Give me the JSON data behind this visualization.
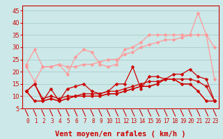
{
  "xlabel": "Vent moyen/en rafales ( km/h )",
  "background_color": "#cce8e8",
  "grid_color": "#aacccc",
  "x": [
    0,
    1,
    2,
    3,
    4,
    5,
    6,
    7,
    8,
    9,
    10,
    11,
    12,
    13,
    14,
    15,
    16,
    17,
    18,
    19,
    20,
    21,
    22,
    23
  ],
  "series": [
    {
      "y": [
        22,
        16,
        22,
        22,
        23,
        19,
        26,
        29,
        28,
        23,
        22,
        23,
        29,
        30,
        32,
        35,
        35,
        35,
        35,
        35,
        35,
        44,
        35,
        30
      ],
      "color": "#ff9999",
      "lw": 0.9,
      "marker": "D",
      "ms": 2.5
    },
    {
      "y": [
        23,
        29,
        22,
        22,
        23,
        22,
        22,
        23,
        23,
        24,
        25,
        25,
        27,
        28,
        30,
        31,
        32,
        33,
        33,
        34,
        35,
        35,
        35,
        17
      ],
      "color": "#ff9999",
      "lw": 0.9,
      "marker": "D",
      "ms": 2.5
    },
    {
      "y": [
        12,
        15,
        8,
        13,
        8,
        13,
        14,
        15,
        12,
        11,
        12,
        15,
        15,
        22,
        13,
        18,
        18,
        17,
        19,
        19,
        21,
        18,
        17,
        8
      ],
      "color": "#cc0000",
      "lw": 0.9,
      "marker": "D",
      "ms": 2.5
    },
    {
      "y": [
        12,
        8,
        8,
        9,
        8,
        9,
        10,
        10,
        10,
        10,
        11,
        11,
        12,
        13,
        14,
        14,
        15,
        17,
        17,
        15,
        15,
        12,
        8,
        8
      ],
      "color": "#cc0000",
      "lw": 0.9,
      "marker": "D",
      "ms": 2.5
    },
    {
      "y": [
        12,
        8,
        8,
        9,
        8,
        9,
        10,
        10,
        10,
        10,
        11,
        11,
        12,
        13,
        14,
        14,
        15,
        17,
        17,
        15,
        15,
        12,
        8,
        8
      ],
      "color": "#cc0000",
      "lw": 0.9,
      "marker": null,
      "ms": 0
    },
    {
      "y": [
        12,
        15,
        9,
        10,
        9,
        10,
        10,
        11,
        11,
        11,
        12,
        12,
        13,
        14,
        15,
        16,
        16,
        17,
        17,
        17,
        17,
        16,
        14,
        8
      ],
      "color": "#cc0000",
      "lw": 0.9,
      "marker": "D",
      "ms": 2.5
    }
  ],
  "ylim": [
    5,
    47
  ],
  "yticks": [
    5,
    10,
    15,
    20,
    25,
    30,
    35,
    40,
    45
  ],
  "xlim": [
    -0.5,
    23.5
  ],
  "tick_color": "#cc0000",
  "axis_color": "#cc0000",
  "xlabel_color": "#cc0000",
  "xlabel_fontsize": 7.5
}
